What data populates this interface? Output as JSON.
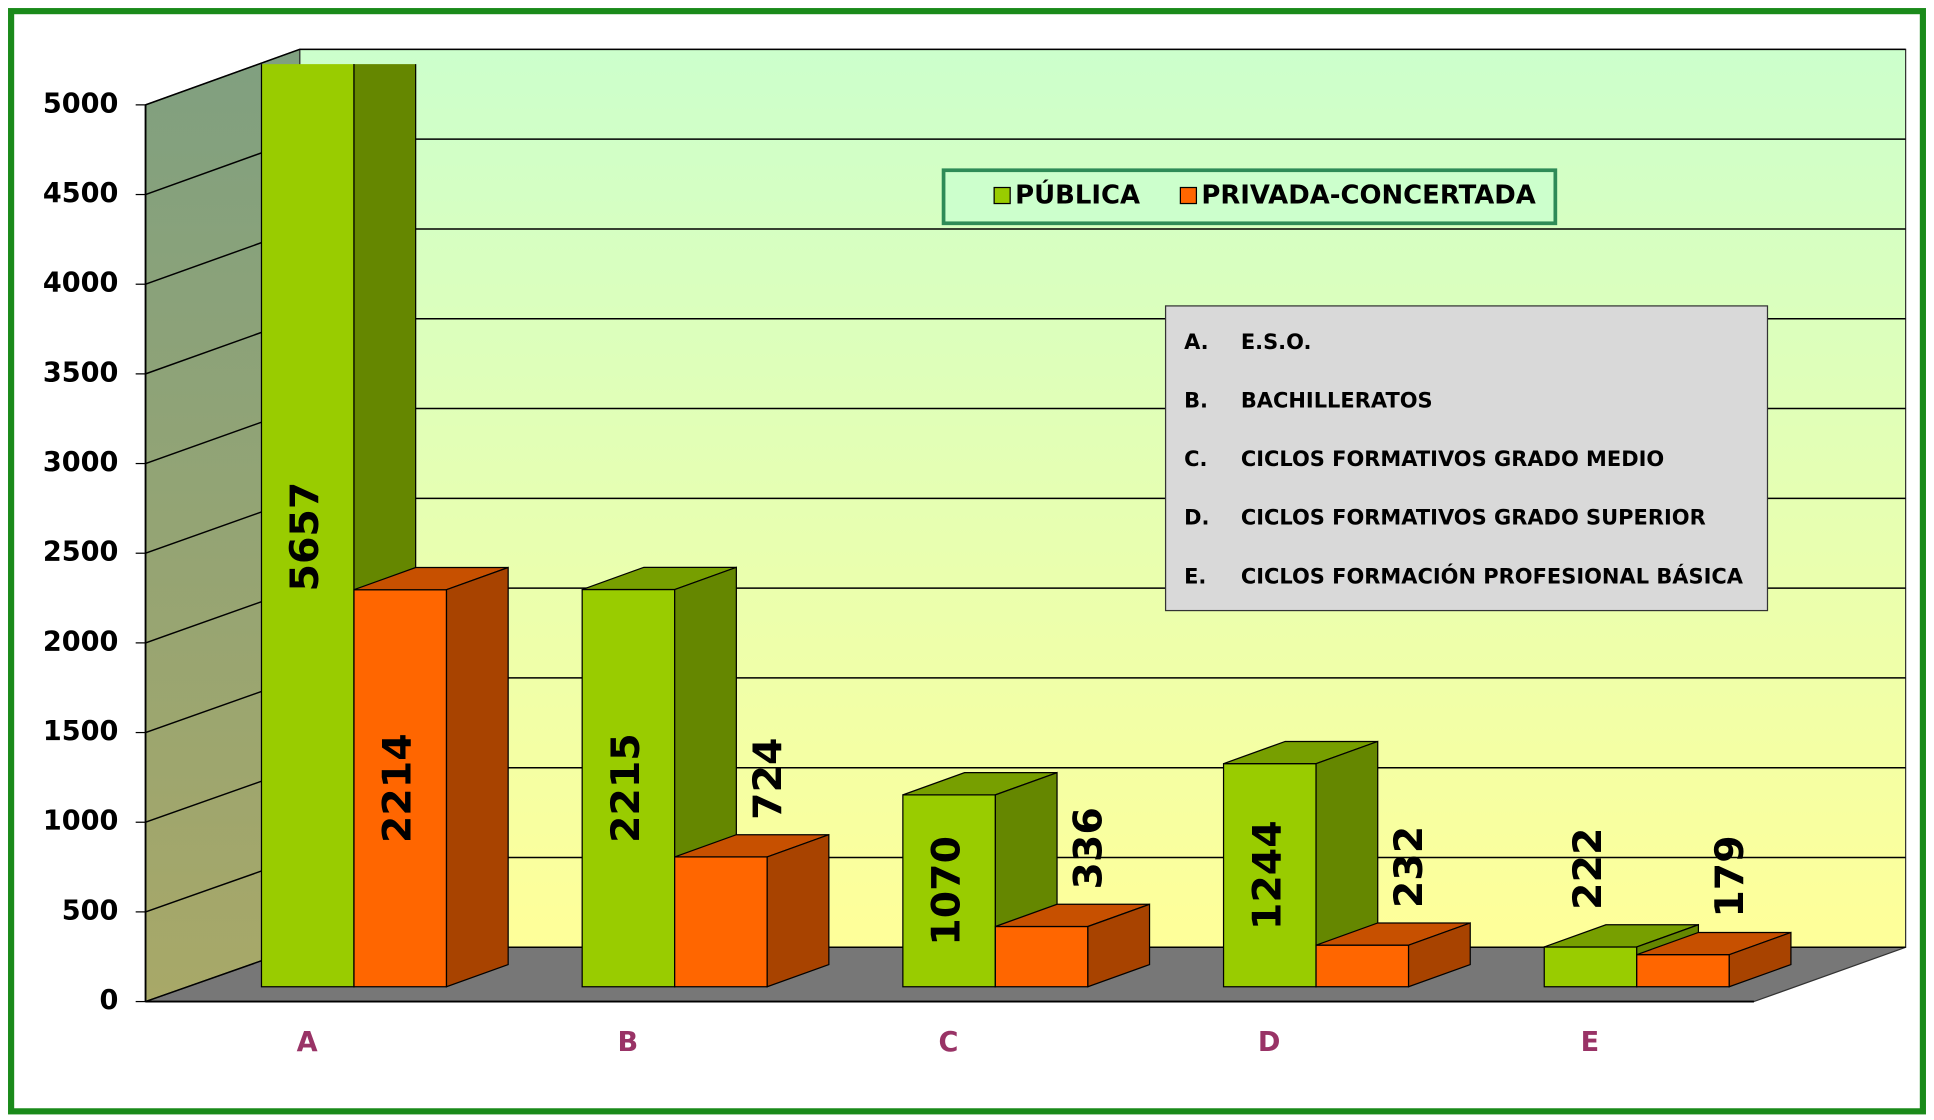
{
  "chart_data": {
    "type": "bar3d",
    "categories": [
      "A",
      "B",
      "C",
      "D",
      "E"
    ],
    "series": [
      {
        "name": "PÚBLICA",
        "color": "#99cc00",
        "values": [
          5657,
          2215,
          1070,
          1244,
          222
        ]
      },
      {
        "name": "PRIVADA-CONCERTADA",
        "color": "#ff6600",
        "values": [
          2214,
          724,
          336,
          232,
          179
        ]
      }
    ],
    "ylim": [
      0,
      5000
    ],
    "yticks": [
      0,
      500,
      1000,
      1500,
      2000,
      2500,
      3000,
      3500,
      4000,
      4500,
      5000
    ],
    "grid": true,
    "category_descriptions": [
      {
        "letter": "A.",
        "text": "E.S.O."
      },
      {
        "letter": "B.",
        "text": "BACHILLERATOS"
      },
      {
        "letter": "C.",
        "text": "CICLOS FORMATIVOS GRADO MEDIO"
      },
      {
        "letter": "D.",
        "text": "CICLOS FORMATIVOS GRADO SUPERIOR"
      },
      {
        "letter": "E.",
        "text": "CICLOS FORMACIÓN PROFESIONAL BÁSICA"
      }
    ]
  }
}
